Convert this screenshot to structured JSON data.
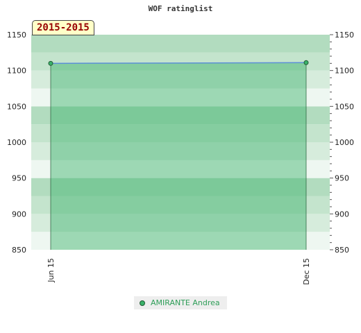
{
  "title": "WOF ratinglist",
  "period_label": "2015-2015",
  "chart_data": {
    "type": "area",
    "title": "WOF ratinglist",
    "x": [
      "Jun 15",
      "Dec 15"
    ],
    "ylim": [
      850,
      1150
    ],
    "yticks": [
      850,
      900,
      950,
      1000,
      1050,
      1100,
      1150
    ],
    "series": [
      {
        "name": "AMIRANTE Andrea",
        "values": [
          1110,
          1111
        ]
      }
    ],
    "grid": true,
    "legend": "bottom",
    "colors": {
      "line": "#5b8fd6",
      "fill": "#3ab26a",
      "marker": "#3ab26a",
      "marker_edge": "#1f5a33"
    }
  },
  "legend": {
    "label": "AMIRANTE Andrea"
  }
}
